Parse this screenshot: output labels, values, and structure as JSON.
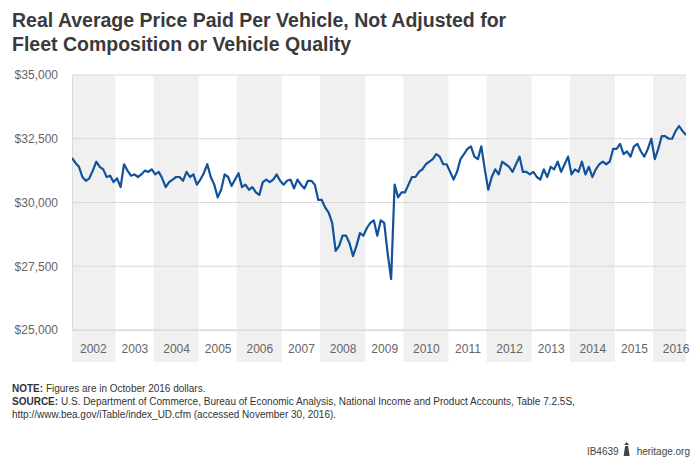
{
  "chart_data": {
    "type": "line",
    "title": [
      "Real Average Price Paid Per Vehicle, Not Adjusted for",
      "Fleet Composition or Vehicle Quality"
    ],
    "categories": [
      null,
      null,
      null,
      null,
      null,
      null,
      "2002",
      null,
      null,
      null,
      null,
      null,
      null,
      null,
      null,
      null,
      null,
      null,
      "2003",
      null,
      null,
      null,
      null,
      null,
      null,
      null,
      null,
      null,
      null,
      null,
      "2004",
      null,
      null,
      null,
      null,
      null,
      null,
      null,
      null,
      null,
      null,
      null,
      "2005",
      null,
      null,
      null,
      null,
      null,
      null,
      null,
      null,
      null,
      null,
      null,
      "2006",
      null,
      null,
      null,
      null,
      null,
      null,
      null,
      null,
      null,
      null,
      null,
      "2007",
      null,
      null,
      null,
      null,
      null,
      null,
      null,
      null,
      null,
      null,
      null,
      "2008",
      null,
      null,
      null,
      null,
      null,
      null,
      null,
      null,
      null,
      null,
      null,
      "2009",
      null,
      null,
      null,
      null,
      null,
      null,
      null,
      null,
      null,
      null,
      null,
      "2010",
      null,
      null,
      null,
      null,
      null,
      null,
      null,
      null,
      null,
      null,
      null,
      "2011",
      null,
      null,
      null,
      null,
      null,
      null,
      null,
      null,
      null,
      null,
      null,
      "2012",
      null,
      null,
      null,
      null,
      null,
      null,
      null,
      null,
      null,
      null,
      null,
      "2013",
      null,
      null,
      null,
      null,
      null,
      null,
      null,
      null,
      null,
      null,
      null,
      "2014",
      null,
      null,
      null,
      null,
      null,
      null,
      null,
      null,
      null,
      null,
      null,
      "2015",
      null,
      null,
      null,
      null,
      null,
      null,
      null,
      null,
      null,
      null,
      null,
      "2016",
      null,
      null,
      null
    ],
    "values": [
      31750,
      31550,
      31400,
      31000,
      30850,
      30950,
      31250,
      31600,
      31400,
      31300,
      31000,
      31050,
      30800,
      30950,
      30600,
      31500,
      31250,
      31050,
      31100,
      31000,
      31100,
      31250,
      31200,
      31300,
      31100,
      31200,
      30950,
      30600,
      30800,
      30900,
      31000,
      31000,
      30850,
      31200,
      31000,
      31100,
      30700,
      30900,
      31150,
      31500,
      31000,
      30700,
      30200,
      30500,
      31100,
      31000,
      30650,
      30900,
      31150,
      30600,
      30700,
      30500,
      30600,
      30400,
      30300,
      30800,
      30900,
      30800,
      30900,
      31100,
      30850,
      30700,
      30850,
      30900,
      30550,
      30900,
      30700,
      30550,
      30850,
      30850,
      30700,
      30100,
      30100,
      29800,
      29600,
      29200,
      28100,
      28300,
      28700,
      28700,
      28400,
      27900,
      28300,
      28800,
      28700,
      29000,
      29200,
      29300,
      28700,
      29300,
      29200,
      28000,
      27000,
      30700,
      30200,
      30400,
      30400,
      30700,
      31000,
      31000,
      31200,
      31300,
      31500,
      31600,
      31700,
      31900,
      31800,
      31500,
      31500,
      31200,
      30900,
      31200,
      31700,
      31900,
      32100,
      32200,
      31800,
      31700,
      32200,
      31300,
      30500,
      31000,
      31300,
      31100,
      31600,
      31500,
      31400,
      31200,
      31500,
      31800,
      31200,
      31200,
      31100,
      31200,
      31000,
      30900,
      31300,
      31000,
      31400,
      31300,
      31600,
      31200,
      31500,
      31800,
      31100,
      31300,
      31200,
      31600,
      31100,
      31400,
      31000,
      31300,
      31500,
      31600,
      31500,
      31600,
      32100,
      32100,
      32300,
      31900,
      32000,
      31800,
      32200,
      32300,
      32000,
      31800,
      32100,
      32500,
      31700,
      32100,
      32600,
      32600,
      32500,
      32500,
      32800,
      33000,
      32800,
      32650
    ],
    "color": "#10529b",
    "ylim": [
      25000,
      35000
    ],
    "yticks": [
      {
        "value": 25000,
        "label": "$25,000"
      },
      {
        "value": 27500,
        "label": "$27,500"
      },
      {
        "value": 30000,
        "label": "$30,000"
      },
      {
        "value": 32500,
        "label": "$32,500"
      },
      {
        "value": 35000,
        "label": "$35,000"
      }
    ],
    "grid": true,
    "annotations": [
      {
        "label": "NOTE:",
        "text": [
          "Figures are in October 2016 dollars."
        ]
      },
      {
        "label": "SOURCE:",
        "text": [
          "U.S. Department of Commerce, Bureau of Economic Analysis, National Income and Product Accounts, Table 7.2.5S,",
          "http://www.bea.gov/iTable/index_UD.cfm (accessed November 30, 2016)."
        ]
      }
    ]
  },
  "footer": {
    "id": "IB4639",
    "site": "heritage.org"
  }
}
